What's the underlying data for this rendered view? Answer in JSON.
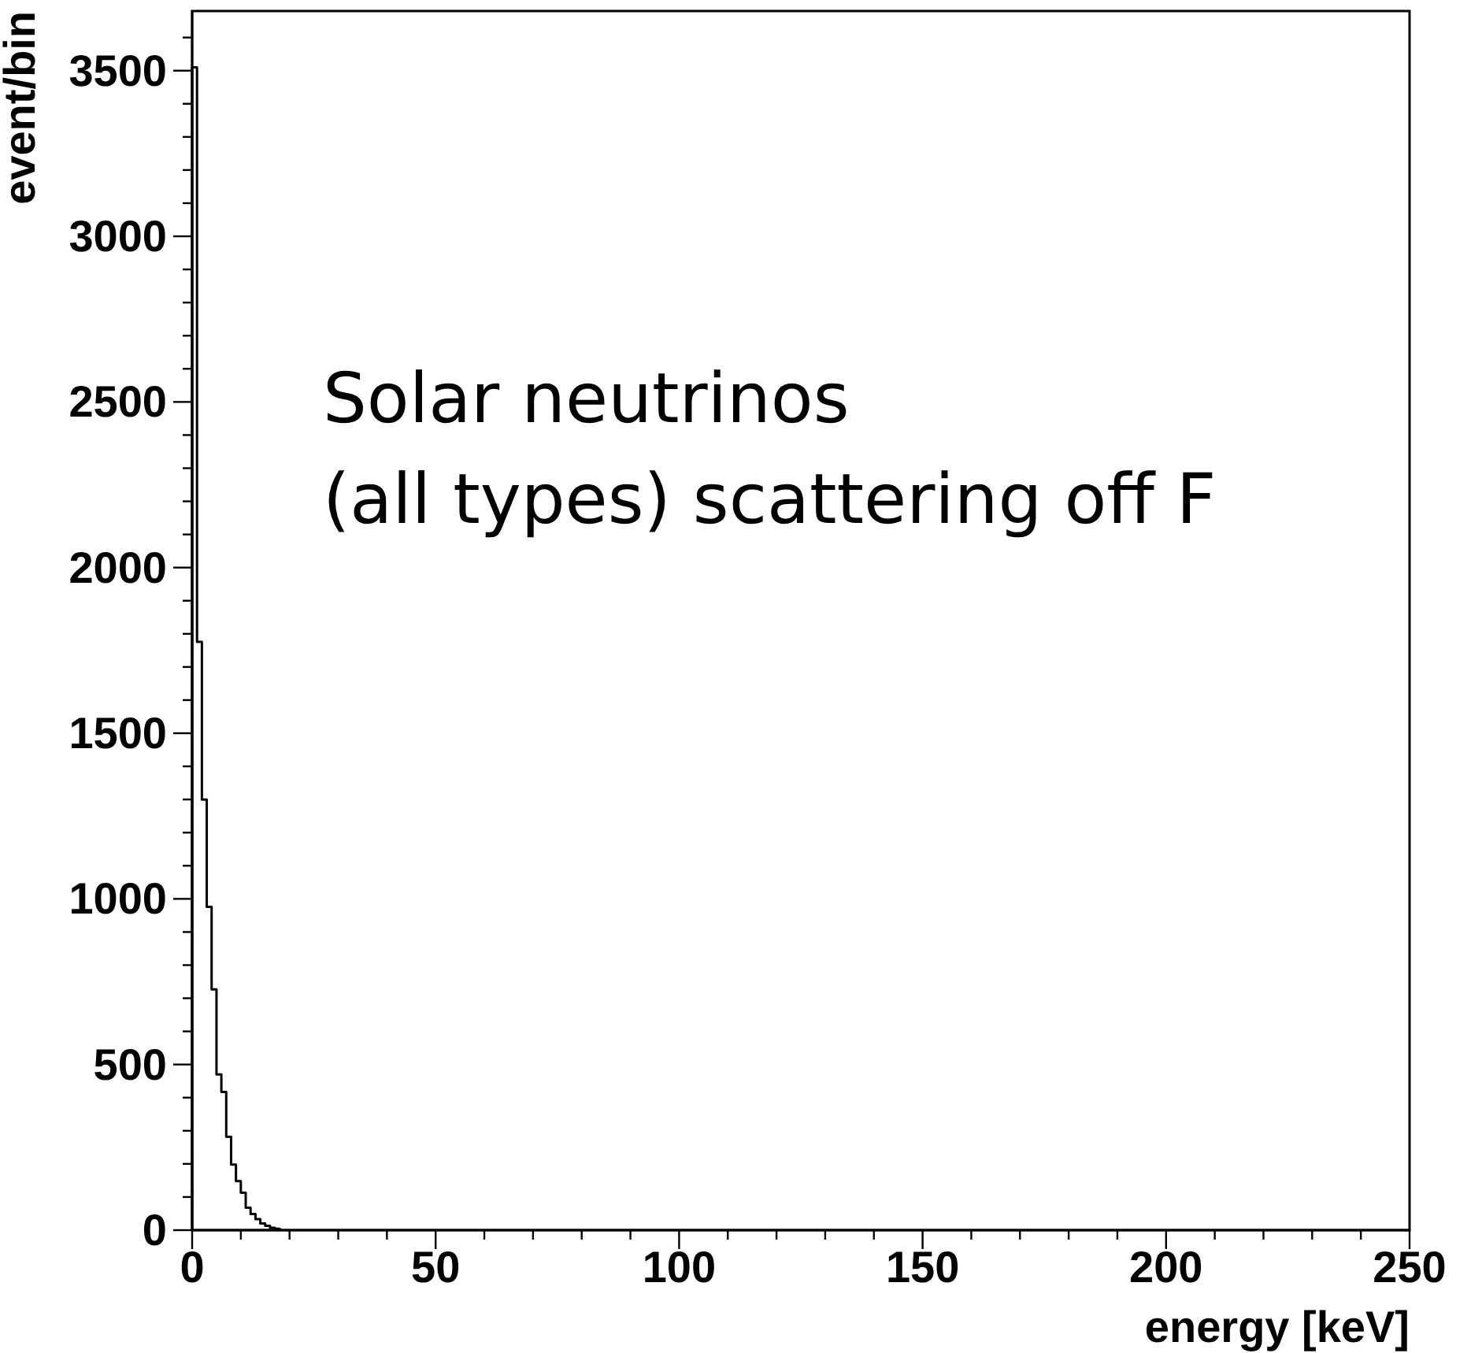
{
  "chart_data": {
    "type": "histogram",
    "xlabel": "energy [keV]",
    "ylabel": "event/bin",
    "color": "#000000",
    "bins": [
      0,
      1,
      2,
      3,
      4,
      5,
      6,
      7,
      8,
      9,
      10,
      11,
      12,
      13,
      14,
      15,
      16,
      17,
      18
    ],
    "values": [
      3510,
      1776,
      1300,
      976,
      727,
      470,
      417,
      282,
      198,
      148,
      113,
      68,
      49,
      33,
      20,
      13,
      7,
      4
    ],
    "xlim": [
      0,
      250
    ],
    "xticks": [
      0,
      50,
      100,
      150,
      200,
      250
    ],
    "ylim": [
      0,
      3680
    ],
    "yticks": [
      0,
      500,
      1000,
      1500,
      2000,
      2500,
      3000,
      3500
    ],
    "annotations": [
      "Solar neutrinos\n(all types) scattering off F"
    ]
  }
}
